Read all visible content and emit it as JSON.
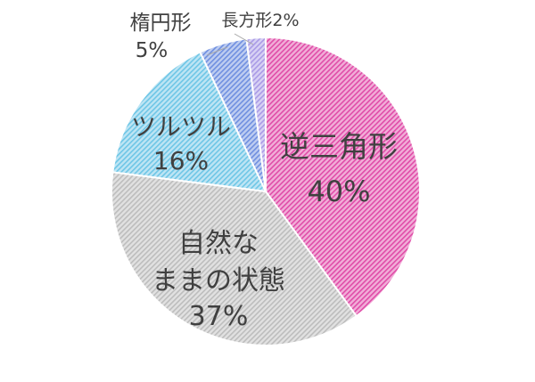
{
  "chart_data": {
    "type": "pie",
    "start_angle_deg": 0,
    "direction": "clockwise",
    "hatched_fill": true,
    "slices": [
      {
        "label": "逆三角形",
        "value": 40,
        "value_label": "40%",
        "color": "#e04ca8"
      },
      {
        "label": "自然なままの状態",
        "label_lines": [
          "自然な",
          "ままの状態"
        ],
        "value": 37,
        "value_label": "37%",
        "color": "#bdbdbd"
      },
      {
        "label": "ツルツル",
        "value": 16,
        "value_label": "16%",
        "color": "#6ec6e6"
      },
      {
        "label": "楕円形",
        "value": 5,
        "value_label": "5%",
        "color": "#6f8fe0"
      },
      {
        "label": "長方形",
        "value": 2,
        "value_label": "長方形2%",
        "color": "#a99ae6"
      }
    ],
    "legend": "none"
  }
}
